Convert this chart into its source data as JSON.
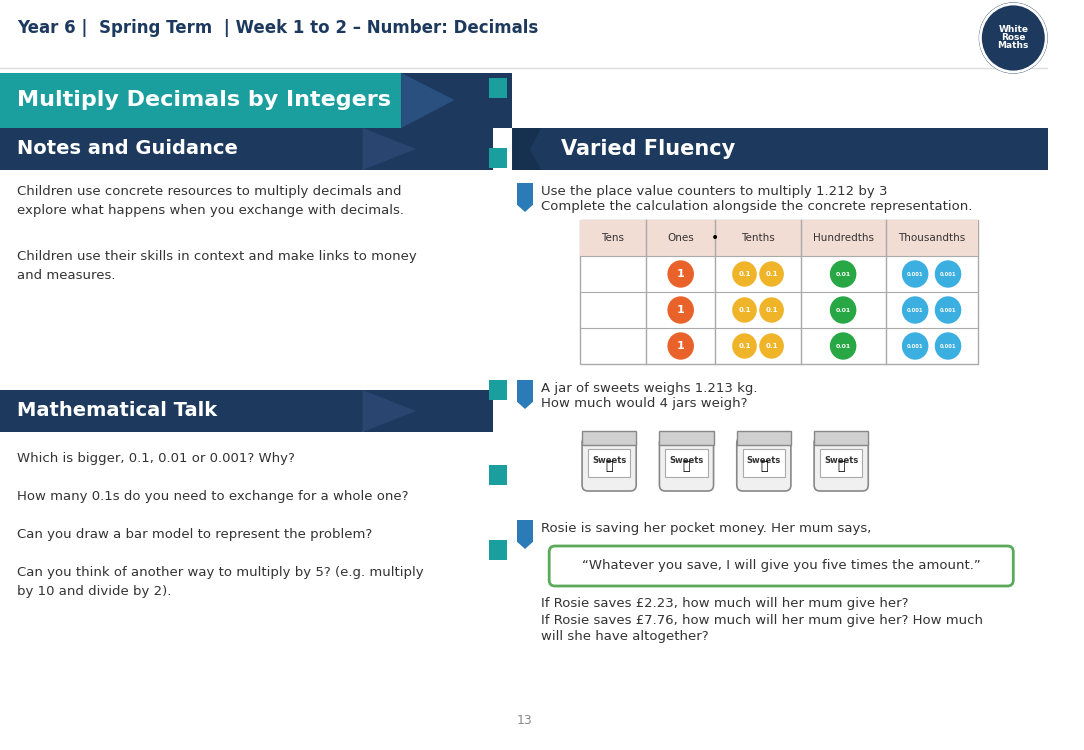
{
  "header_text": "Year 6 |  Spring Term  | Week 1 to 2 – Number: Decimals",
  "main_title": "Multiply Decimals by Integers",
  "notes_title": "Notes and Guidance",
  "notes_text1": "Children use concrete resources to multiply decimals and\nexplore what happens when you exchange with decimals.",
  "notes_text2": "Children use their skills in context and make links to money\nand measures.",
  "math_talk_title": "Mathematical Talk",
  "math_talk_q1": "Which is bigger, 0.1, 0.01 or 0.001? Why?",
  "math_talk_q2": "How many 0.1s do you need to exchange for a whole one?",
  "math_talk_q3": "Can you draw a bar model to represent the problem?",
  "math_talk_q4": "Can you think of another way to multiply by 5? (e.g. multiply\nby 10 and divide by 2).",
  "varied_title": "Varied Fluency",
  "vf_q1_line1": "Use the place value counters to multiply 1.212 by 3",
  "vf_q1_line2": "Complete the calculation alongside the concrete representation.",
  "vf_q2_line1": "A jar of sweets weighs 1.213 kg.",
  "vf_q2_line2": "How much would 4 jars weigh?",
  "vf_q3_line1": "Rosie is saving her pocket money. Her mum says,",
  "vf_quote": "“Whatever you save, I will give you five times the amount.”",
  "vf_q3_line3": "If Rosie saves £2.23, how much will her mum give her?",
  "vf_q3_line4a": "If Rosie saves £7.76, how much will her mum give her? How much",
  "vf_q3_line4b": "will she have altogether?",
  "page_num": "13",
  "color_teal": "#1a9e9e",
  "color_dark_navy": "#1d3a5e",
  "color_orange": "#e8622a",
  "color_yellow": "#f0b429",
  "color_green": "#27a844",
  "color_cyan": "#3aafe0",
  "color_table_header_bg": "#f2ddd5",
  "color_body_text": "#333333",
  "color_bookmark": "#2b7bb9",
  "bg_color": "#ffffff"
}
